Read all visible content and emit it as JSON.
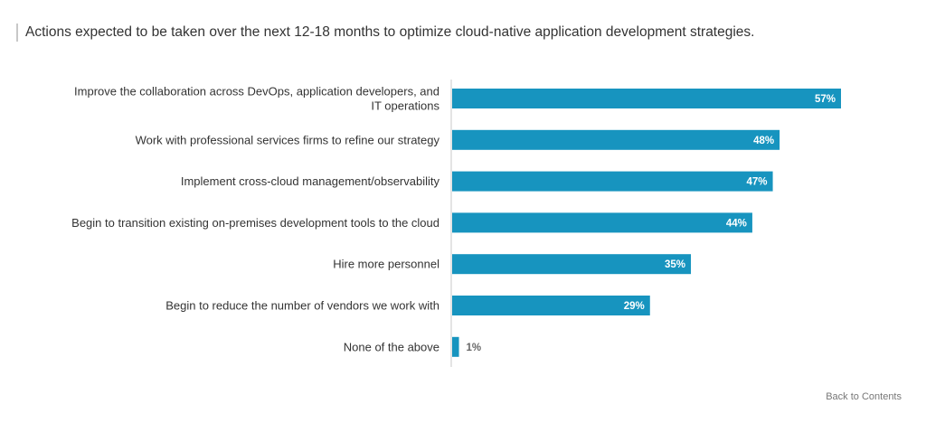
{
  "colors": {
    "bar": "#1794bf",
    "axis": "#c8c8c8",
    "label_inside": "#ffffff",
    "label_outside": "#666666"
  },
  "chart_data": {
    "type": "bar",
    "orientation": "horizontal",
    "title": "Actions expected to be taken over the next 12-18 months to optimize cloud-native application development strategies.",
    "categories": [
      "Improve the collaboration across DevOps, application developers, and IT operations",
      "Work with professional services firms to refine our strategy",
      "Implement cross-cloud management/observability",
      "Begin to transition existing on-premises development tools to the cloud",
      "Hire more personnel",
      "Begin to reduce the number of vendors we work with",
      "None of the above"
    ],
    "category_lines": [
      [
        "Improve the collaboration across DevOps, application developers, and",
        "IT operations"
      ],
      [
        "Work with professional services firms to refine our strategy"
      ],
      [
        "Implement cross-cloud management/observability"
      ],
      [
        "Begin to transition existing on-premises development tools to the cloud"
      ],
      [
        "Hire more personnel"
      ],
      [
        "Begin to reduce the number of vendors we work with"
      ],
      [
        "None of the above"
      ]
    ],
    "values": [
      57,
      48,
      47,
      44,
      35,
      29,
      1
    ],
    "value_labels": [
      "57%",
      "48%",
      "47%",
      "44%",
      "35%",
      "29%",
      "1%"
    ],
    "xlim": [
      0,
      60
    ],
    "grid": false,
    "legend": "none"
  },
  "footer": {
    "back_link": "Back to Contents"
  }
}
